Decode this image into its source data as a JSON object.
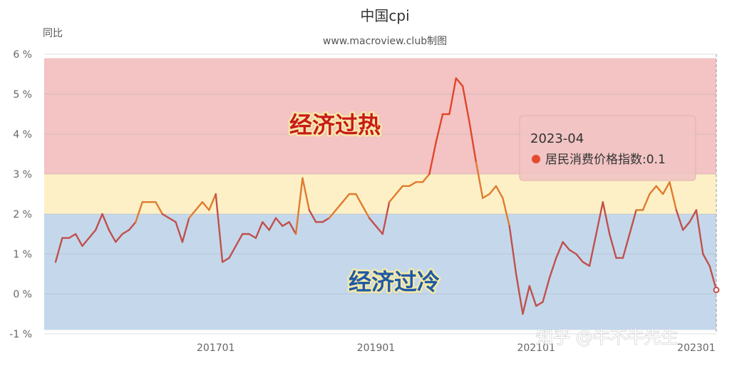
{
  "chart_data": {
    "type": "line",
    "title": "中国cpi",
    "subtitle": "www.macroview.club制图",
    "ylabel": "同比",
    "ylim": [
      -1,
      6
    ],
    "yticks": [
      "-1 %",
      "0 %",
      "1 %",
      "2 %",
      "3 %",
      "4 %",
      "5 %",
      "6 %"
    ],
    "xticks": [
      {
        "label": "201701",
        "date": "2017-01"
      },
      {
        "label": "201901",
        "date": "2019-01"
      },
      {
        "label": "202101",
        "date": "2021-01"
      },
      {
        "label": "202301",
        "date": "2023-01"
      }
    ],
    "bands": [
      {
        "from": 3,
        "to": 5.9,
        "color": "#f4c3c3",
        "label": "经济过热",
        "label_color": "#c91a1a"
      },
      {
        "from": 2,
        "to": 3,
        "color": "#fdf0c6",
        "label": "",
        "label_color": ""
      },
      {
        "from": -0.9,
        "to": 2,
        "color": "#c5d8eb",
        "label": "经济过冷",
        "label_color": "#1f5aa5"
      }
    ],
    "series": [
      {
        "name": "居民消费价格指数",
        "color": "#c0504d",
        "start": "2015-01",
        "values": [
          0.8,
          1.4,
          1.4,
          1.5,
          1.2,
          1.4,
          1.6,
          2.0,
          1.6,
          1.3,
          1.5,
          1.6,
          1.8,
          2.3,
          2.3,
          2.3,
          2.0,
          1.9,
          1.8,
          1.3,
          1.9,
          2.1,
          2.3,
          2.1,
          2.5,
          0.8,
          0.9,
          1.2,
          1.5,
          1.5,
          1.4,
          1.8,
          1.6,
          1.9,
          1.7,
          1.8,
          1.5,
          2.9,
          2.1,
          1.8,
          1.8,
          1.9,
          2.1,
          2.3,
          2.5,
          2.5,
          2.2,
          1.9,
          1.7,
          1.5,
          2.3,
          2.5,
          2.7,
          2.7,
          2.8,
          2.8,
          3.0,
          3.8,
          4.5,
          4.5,
          5.4,
          5.2,
          4.3,
          3.3,
          2.4,
          2.5,
          2.7,
          2.4,
          1.7,
          0.5,
          -0.5,
          0.2,
          -0.3,
          -0.2,
          0.4,
          0.9,
          1.3,
          1.1,
          1.0,
          0.8,
          0.7,
          1.5,
          2.3,
          1.5,
          0.9,
          0.9,
          1.5,
          2.1,
          2.1,
          2.5,
          2.7,
          2.5,
          2.8,
          2.1,
          1.6,
          1.8,
          2.1,
          1.0,
          0.7,
          0.1
        ]
      }
    ],
    "tooltip": {
      "date": "2023-04",
      "series_name": "居民消费价格指数",
      "value": "0.1",
      "text": "居民消费价格指数:0.1"
    },
    "watermark": "知乎 @牛不牛先生"
  }
}
